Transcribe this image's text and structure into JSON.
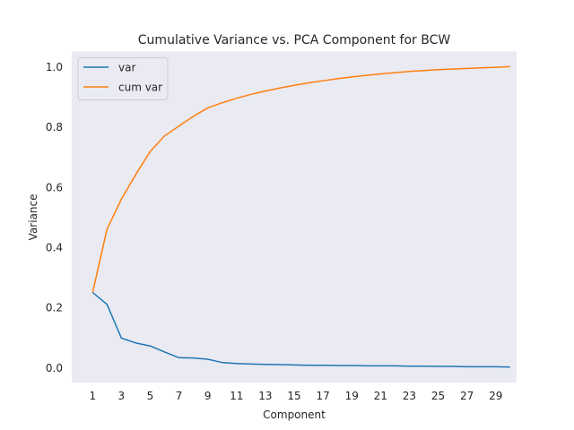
{
  "chart_data": {
    "type": "line",
    "title": "Cumulative Variance vs. PCA Component for BCW",
    "xlabel": "Component",
    "ylabel": "Variance",
    "xlim": [
      -0.45,
      30.45
    ],
    "ylim": [
      -0.05,
      1.05
    ],
    "xticks": [
      1,
      3,
      5,
      7,
      9,
      11,
      13,
      15,
      17,
      19,
      21,
      23,
      25,
      27,
      29
    ],
    "yticks": [
      0.0,
      0.2,
      0.4,
      0.6,
      0.8,
      1.0
    ],
    "ytick_labels": [
      "0.0",
      "0.2",
      "0.4",
      "0.6",
      "0.8",
      "1.0"
    ],
    "grid": false,
    "legend_position": "top-left",
    "background_color": "#eaeaf2",
    "x": [
      1,
      2,
      3,
      4,
      5,
      6,
      7,
      8,
      9,
      10,
      11,
      12,
      13,
      14,
      15,
      16,
      17,
      18,
      19,
      20,
      21,
      22,
      23,
      24,
      25,
      26,
      27,
      28,
      29,
      30
    ],
    "series": [
      {
        "name": "var",
        "color": "#1f77b4",
        "values": [
          0.25,
          0.21,
          0.098,
          0.082,
          0.072,
          0.052,
          0.033,
          0.032,
          0.028,
          0.017,
          0.014,
          0.012,
          0.011,
          0.01,
          0.009,
          0.008,
          0.008,
          0.007,
          0.007,
          0.006,
          0.006,
          0.006,
          0.005,
          0.005,
          0.004,
          0.004,
          0.003,
          0.003,
          0.003,
          0.002
        ]
      },
      {
        "name": "cum var",
        "color": "#ff7f0e",
        "values": [
          0.25,
          0.46,
          0.56,
          0.642,
          0.718,
          0.77,
          0.803,
          0.835,
          0.863,
          0.88,
          0.895,
          0.908,
          0.919,
          0.929,
          0.938,
          0.946,
          0.953,
          0.96,
          0.966,
          0.971,
          0.976,
          0.98,
          0.984,
          0.987,
          0.99,
          0.992,
          0.994,
          0.996,
          0.998,
          1.0
        ]
      }
    ]
  }
}
